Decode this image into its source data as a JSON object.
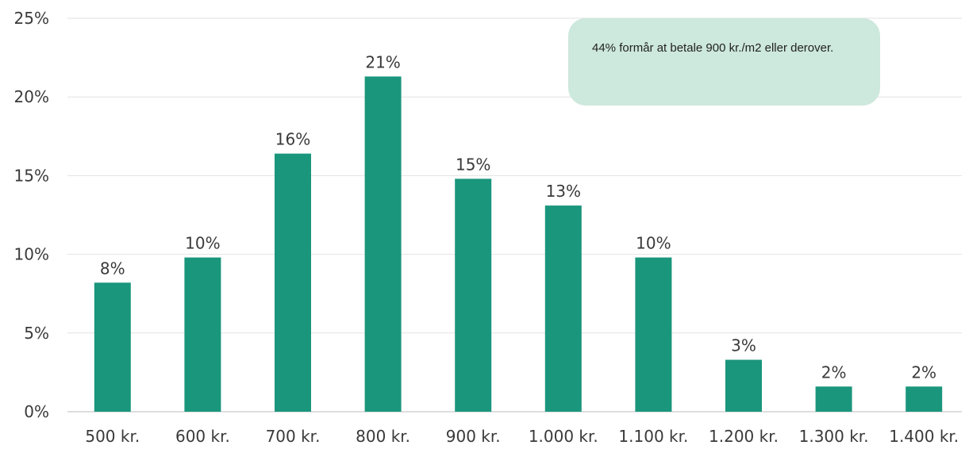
{
  "chart_data": {
    "type": "bar",
    "categories": [
      "500 kr.",
      "600 kr.",
      "700 kr.",
      "800 kr.",
      "900 kr.",
      "1.000 kr.",
      "1.100 kr.",
      "1.200 kr.",
      "1.300 kr.",
      "1.400 kr."
    ],
    "values": [
      8.2,
      9.8,
      16.4,
      21.3,
      14.8,
      13.1,
      9.8,
      3.3,
      1.6,
      1.6
    ],
    "data_labels": [
      "8%",
      "10%",
      "16%",
      "21%",
      "15%",
      "13%",
      "10%",
      "3%",
      "2%",
      "2%"
    ],
    "ylim": [
      0,
      25
    ],
    "yticks": [
      0,
      5,
      10,
      15,
      20,
      25
    ],
    "ytick_labels": [
      "0%",
      "5%",
      "10%",
      "15%",
      "20%",
      "25%"
    ],
    "grid": true,
    "bar_color": "#1a967c",
    "annotation": "44% formår at betale 900 kr./m2 eller derover."
  }
}
